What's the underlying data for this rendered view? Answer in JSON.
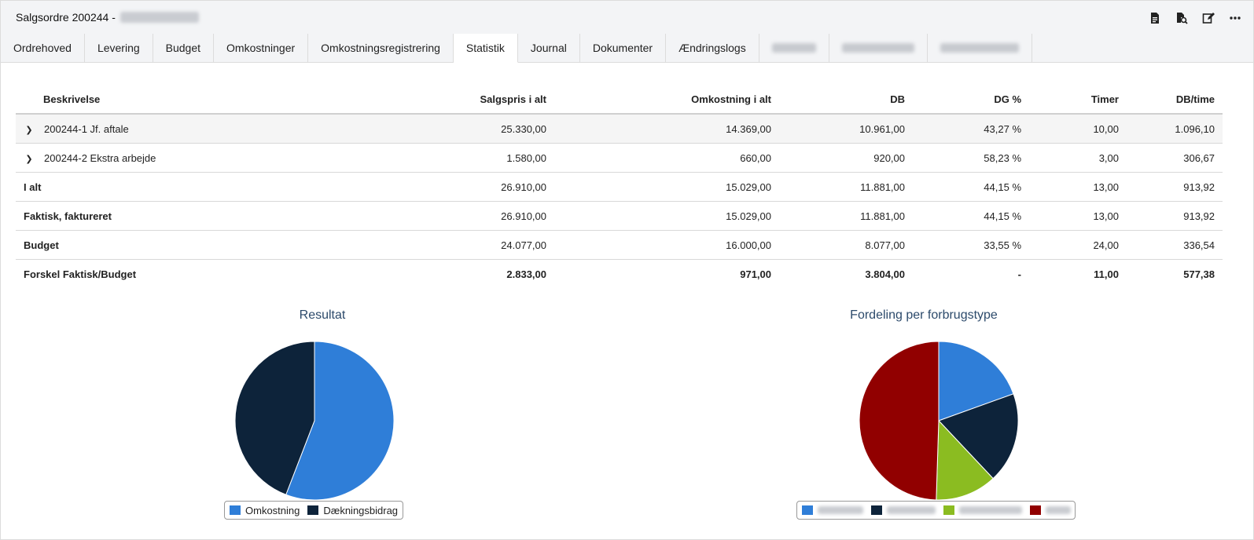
{
  "header": {
    "title": "Salgsordre 200244 -",
    "tools": [
      {
        "name": "document-icon"
      },
      {
        "name": "search-document-icon"
      },
      {
        "name": "edit-icon"
      },
      {
        "name": "more-icon"
      }
    ]
  },
  "tabs": [
    {
      "label": "Ordrehoved",
      "active": false
    },
    {
      "label": "Levering",
      "active": false
    },
    {
      "label": "Budget",
      "active": false
    },
    {
      "label": "Omkostninger",
      "active": false
    },
    {
      "label": "Omkostningsregistrering",
      "active": false
    },
    {
      "label": "Statistik",
      "active": true
    },
    {
      "label": "Journal",
      "active": false
    },
    {
      "label": "Dokumenter",
      "active": false
    },
    {
      "label": "Ændringslogs",
      "active": false
    }
  ],
  "table": {
    "headers": [
      "Beskrivelse",
      "Salgspris i alt",
      "Omkostning i alt",
      "DB",
      "DG %",
      "Timer",
      "DB/time"
    ],
    "rows": [
      {
        "desc": "200244-1 Jf. aftale",
        "values": [
          "25.330,00",
          "14.369,00",
          "10.961,00",
          "43,27 %",
          "10,00",
          "1.096,10"
        ]
      },
      {
        "desc": "200244-2 Ekstra arbejde",
        "values": [
          "1.580,00",
          "660,00",
          "920,00",
          "58,23 %",
          "3,00",
          "306,67"
        ]
      },
      {
        "desc": "I alt",
        "values": [
          "26.910,00",
          "15.029,00",
          "11.881,00",
          "44,15 %",
          "13,00",
          "913,92"
        ]
      },
      {
        "desc": "Faktisk, faktureret",
        "values": [
          "26.910,00",
          "15.029,00",
          "11.881,00",
          "44,15 %",
          "13,00",
          "913,92"
        ]
      },
      {
        "desc": "Budget",
        "values": [
          "24.077,00",
          "16.000,00",
          "8.077,00",
          "33,55 %",
          "24,00",
          "336,54"
        ]
      },
      {
        "desc": "Forskel Faktisk/Budget",
        "values": [
          "2.833,00",
          "971,00",
          "3.804,00",
          "-",
          "11,00",
          "577,38"
        ]
      }
    ]
  },
  "chart_data": [
    {
      "type": "pie",
      "title": "Resultat",
      "series": [
        {
          "name": "Omkostning",
          "value": 15029,
          "color": "#2f7ed8"
        },
        {
          "name": "Dækningsbidrag",
          "value": 11881,
          "color": "#0d233a"
        }
      ]
    },
    {
      "type": "pie",
      "title": "Fordeling per forbrugstype",
      "series": [
        {
          "value": 19.5,
          "color": "#2f7ed8"
        },
        {
          "value": 18.5,
          "color": "#0d233a"
        },
        {
          "value": 12.5,
          "color": "#8bbc21"
        },
        {
          "value": 49.5,
          "color": "#910000"
        }
      ]
    }
  ]
}
